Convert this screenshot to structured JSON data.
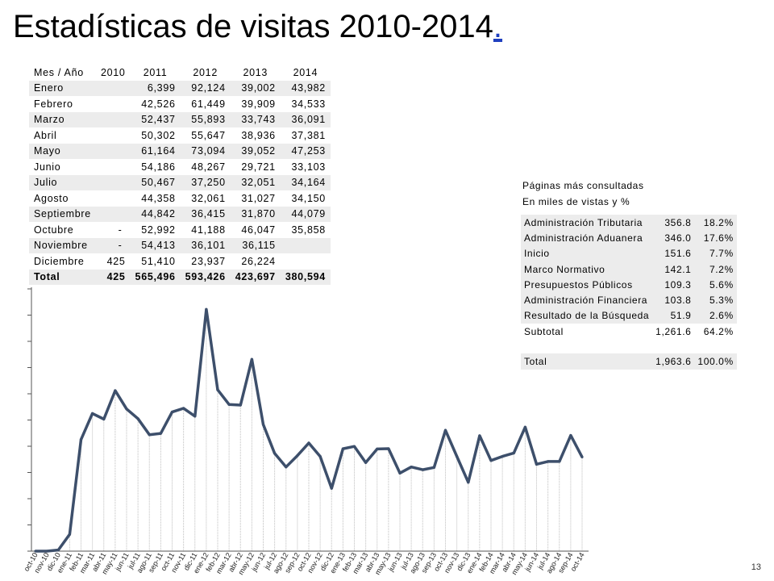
{
  "title": "Estadísticas de visitas 2010-2014",
  "title_suffix": ".",
  "page_number": "13",
  "visits_table": {
    "headers": [
      "Mes  / Año",
      "2010",
      "2011",
      "2012",
      "2013",
      "2014"
    ],
    "rows": [
      {
        "month": "Enero",
        "cells": [
          "",
          "6,399",
          "92,124",
          "39,002",
          "43,982"
        ]
      },
      {
        "month": "Febrero",
        "cells": [
          "",
          "42,526",
          "61,449",
          "39,909",
          "34,533"
        ]
      },
      {
        "month": "Marzo",
        "cells": [
          "",
          "52,437",
          "55,893",
          "33,743",
          "36,091"
        ]
      },
      {
        "month": "Abril",
        "cells": [
          "",
          "50,302",
          "55,647",
          "38,936",
          "37,381"
        ]
      },
      {
        "month": "Mayo",
        "cells": [
          "",
          "61,164",
          "73,094",
          "39,052",
          "47,253"
        ]
      },
      {
        "month": "Junio",
        "cells": [
          "",
          "54,186",
          "48,267",
          "29,721",
          "33,103"
        ]
      },
      {
        "month": "Julio",
        "cells": [
          "",
          "50,467",
          "37,250",
          "32,051",
          "34,164"
        ]
      },
      {
        "month": "Agosto",
        "cells": [
          "",
          "44,358",
          "32,061",
          "31,027",
          "34,150"
        ]
      },
      {
        "month": "Septiembre",
        "cells": [
          "",
          "44,842",
          "36,415",
          "31,870",
          "44,079"
        ]
      },
      {
        "month": "Octubre",
        "cells": [
          "-",
          "52,992",
          "41,188",
          "46,047",
          "35,858"
        ]
      },
      {
        "month": "Noviembre",
        "cells": [
          "-",
          "54,413",
          "36,101",
          "36,115",
          ""
        ]
      },
      {
        "month": "Diciembre",
        "cells": [
          "425",
          "51,410",
          "23,937",
          "26,224",
          ""
        ]
      }
    ],
    "total": {
      "label": "Total",
      "cells": [
        "425",
        "565,496",
        "593,426",
        "423,697",
        "380,594"
      ]
    }
  },
  "pages_table": {
    "heading1": "Páginas más consultadas",
    "heading2": "En miles de vistas y %",
    "rows": [
      {
        "name": "Administración Tributaria",
        "value": "356.8",
        "pct": "18.2%"
      },
      {
        "name": "Administración Aduanera",
        "value": "346.0",
        "pct": "17.6%"
      },
      {
        "name": "Inicio",
        "value": "151.6",
        "pct": "7.7%"
      },
      {
        "name": "Marco Normativo",
        "value": "142.1",
        "pct": "7.2%"
      },
      {
        "name": "Presupuestos Públicos",
        "value": "109.3",
        "pct": "5.6%"
      },
      {
        "name": "Administración Financiera",
        "value": "103.8",
        "pct": "5.3%"
      },
      {
        "name": "Resultado de la Búsqueda",
        "value": "51.9",
        "pct": "2.6%"
      }
    ],
    "subtotal": {
      "name": "Subtotal",
      "value": "1,261.6",
      "pct": "64.2%"
    },
    "total": {
      "name": "Total",
      "value": "1,963.6",
      "pct": "100.0%"
    }
  },
  "chart_data": {
    "type": "line",
    "x": [
      "oct-10",
      "nov-10",
      "dic-10",
      "ene-11",
      "feb-11",
      "mar-11",
      "abr-11",
      "may-11",
      "jun-11",
      "jul-11",
      "ago-11",
      "sep-11",
      "oct-11",
      "nov-11",
      "dic-11",
      "ene-12",
      "feb-12",
      "mar-12",
      "abr-12",
      "may-12",
      "jun-12",
      "jul-12",
      "ago-12",
      "sep-12",
      "oct-12",
      "nov-12",
      "dic-12",
      "ene-13",
      "feb-13",
      "mar-13",
      "abr-13",
      "may-13",
      "jun-13",
      "jul-13",
      "ago-13",
      "sep-13",
      "oct-13",
      "nov-13",
      "dic-13",
      "ene-14",
      "feb-14",
      "mar-14",
      "abr-14",
      "may-14",
      "jun-14",
      "jul-14",
      "ago-14",
      "sep-14",
      "oct-14"
    ],
    "values": [
      0,
      0,
      425,
      6399,
      42526,
      52437,
      50302,
      61164,
      54186,
      50467,
      44358,
      44842,
      52992,
      54413,
      51410,
      92124,
      61449,
      55893,
      55647,
      73094,
      48267,
      37250,
      32061,
      36415,
      41188,
      36101,
      23937,
      39002,
      39909,
      33743,
      38936,
      39052,
      29721,
      32051,
      31027,
      31870,
      46047,
      36115,
      26224,
      43982,
      34533,
      36091,
      37381,
      47253,
      33103,
      34164,
      34150,
      44079,
      35858
    ],
    "ylim": [
      0,
      95000
    ],
    "grid": false,
    "line_color": "#3d4f6b",
    "drop_line_color": "#bdbdbd"
  }
}
